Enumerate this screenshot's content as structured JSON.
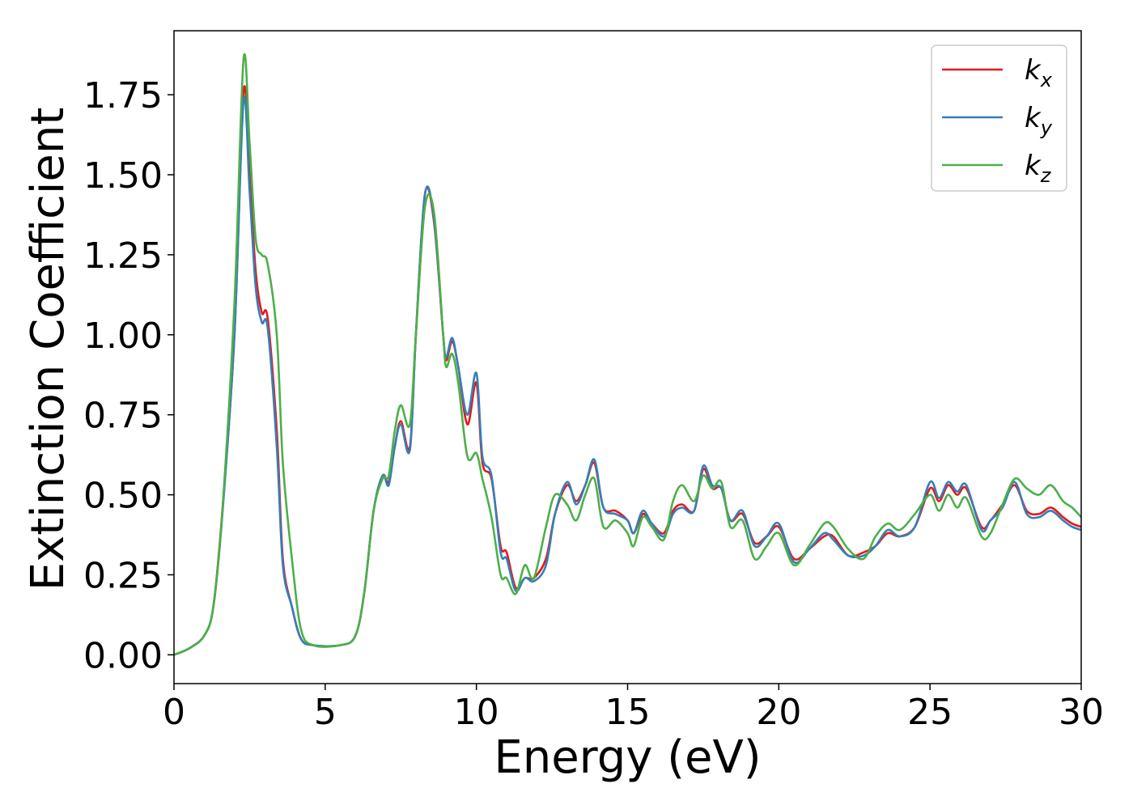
{
  "chart_data": {
    "type": "line",
    "title": "",
    "xlabel": "Energy (eV)",
    "ylabel": "Extinction Coefficient",
    "xlim": [
      0,
      30
    ],
    "ylim": [
      -0.09,
      1.95
    ],
    "xticks": [
      "0",
      "5",
      "10",
      "15",
      "20",
      "25",
      "30"
    ],
    "yticks": [
      "0.00",
      "0.25",
      "0.50",
      "0.75",
      "1.00",
      "1.25",
      "1.50",
      "1.75"
    ],
    "grid": false,
    "legend": {
      "position": "top-right"
    },
    "series": [
      {
        "name": "k_x",
        "label_main": "k",
        "label_sub": "x",
        "color": "#e41a1c",
        "points": [
          [
            0,
            0
          ],
          [
            0.5,
            0.02
          ],
          [
            1,
            0.06
          ],
          [
            1.3,
            0.15
          ],
          [
            1.6,
            0.45
          ],
          [
            2.0,
            1.0
          ],
          [
            2.3,
            1.76
          ],
          [
            2.5,
            1.5
          ],
          [
            2.7,
            1.2
          ],
          [
            2.9,
            1.07
          ],
          [
            3.1,
            1.05
          ],
          [
            3.4,
            0.7
          ],
          [
            3.6,
            0.3
          ],
          [
            3.9,
            0.15
          ],
          [
            4.2,
            0.05
          ],
          [
            4.6,
            0.03
          ],
          [
            5.5,
            0.03
          ],
          [
            6.0,
            0.06
          ],
          [
            6.3,
            0.2
          ],
          [
            6.6,
            0.45
          ],
          [
            6.9,
            0.56
          ],
          [
            7.1,
            0.54
          ],
          [
            7.3,
            0.65
          ],
          [
            7.5,
            0.73
          ],
          [
            7.8,
            0.65
          ],
          [
            8.0,
            1.0
          ],
          [
            8.3,
            1.44
          ],
          [
            8.6,
            1.35
          ],
          [
            8.9,
            1.0
          ],
          [
            9.0,
            0.92
          ],
          [
            9.2,
            0.98
          ],
          [
            9.4,
            0.9
          ],
          [
            9.7,
            0.72
          ],
          [
            10.0,
            0.85
          ],
          [
            10.2,
            0.6
          ],
          [
            10.5,
            0.55
          ],
          [
            10.8,
            0.34
          ],
          [
            11.0,
            0.32
          ],
          [
            11.3,
            0.21
          ],
          [
            11.6,
            0.24
          ],
          [
            11.9,
            0.24
          ],
          [
            12.3,
            0.3
          ],
          [
            12.6,
            0.44
          ],
          [
            13.0,
            0.53
          ],
          [
            13.3,
            0.48
          ],
          [
            13.6,
            0.53
          ],
          [
            13.9,
            0.6
          ],
          [
            14.2,
            0.46
          ],
          [
            14.6,
            0.45
          ],
          [
            15.0,
            0.42
          ],
          [
            15.2,
            0.38
          ],
          [
            15.5,
            0.44
          ],
          [
            15.8,
            0.41
          ],
          [
            16.2,
            0.38
          ],
          [
            16.5,
            0.45
          ],
          [
            16.8,
            0.47
          ],
          [
            17.2,
            0.45
          ],
          [
            17.5,
            0.58
          ],
          [
            17.8,
            0.52
          ],
          [
            18.1,
            0.52
          ],
          [
            18.4,
            0.42
          ],
          [
            18.8,
            0.44
          ],
          [
            19.2,
            0.35
          ],
          [
            19.6,
            0.37
          ],
          [
            20.0,
            0.4
          ],
          [
            20.5,
            0.3
          ],
          [
            21.0,
            0.33
          ],
          [
            21.5,
            0.37
          ],
          [
            21.8,
            0.37
          ],
          [
            22.3,
            0.31
          ],
          [
            22.8,
            0.32
          ],
          [
            23.2,
            0.34
          ],
          [
            23.6,
            0.38
          ],
          [
            24.0,
            0.37
          ],
          [
            24.5,
            0.4
          ],
          [
            25.0,
            0.52
          ],
          [
            25.3,
            0.48
          ],
          [
            25.6,
            0.53
          ],
          [
            25.9,
            0.5
          ],
          [
            26.2,
            0.52
          ],
          [
            26.7,
            0.4
          ],
          [
            27.0,
            0.42
          ],
          [
            27.4,
            0.47
          ],
          [
            27.8,
            0.53
          ],
          [
            28.2,
            0.45
          ],
          [
            28.6,
            0.44
          ],
          [
            29.0,
            0.46
          ],
          [
            29.4,
            0.43
          ],
          [
            29.7,
            0.41
          ],
          [
            30.0,
            0.4
          ]
        ]
      },
      {
        "name": "k_y",
        "label_main": "k",
        "label_sub": "y",
        "color": "#377eb8",
        "points": [
          [
            0,
            0
          ],
          [
            0.5,
            0.02
          ],
          [
            1,
            0.06
          ],
          [
            1.3,
            0.15
          ],
          [
            1.6,
            0.44
          ],
          [
            2.0,
            1.0
          ],
          [
            2.3,
            1.73
          ],
          [
            2.5,
            1.45
          ],
          [
            2.7,
            1.15
          ],
          [
            2.9,
            1.04
          ],
          [
            3.1,
            1.02
          ],
          [
            3.4,
            0.65
          ],
          [
            3.6,
            0.28
          ],
          [
            3.9,
            0.15
          ],
          [
            4.2,
            0.05
          ],
          [
            4.6,
            0.03
          ],
          [
            5.5,
            0.03
          ],
          [
            6.0,
            0.06
          ],
          [
            6.3,
            0.2
          ],
          [
            6.6,
            0.45
          ],
          [
            6.9,
            0.56
          ],
          [
            7.1,
            0.53
          ],
          [
            7.3,
            0.65
          ],
          [
            7.5,
            0.72
          ],
          [
            7.8,
            0.64
          ],
          [
            8.0,
            1.0
          ],
          [
            8.3,
            1.44
          ],
          [
            8.6,
            1.36
          ],
          [
            8.9,
            1.0
          ],
          [
            9.0,
            0.93
          ],
          [
            9.2,
            0.99
          ],
          [
            9.4,
            0.9
          ],
          [
            9.7,
            0.75
          ],
          [
            10.0,
            0.88
          ],
          [
            10.2,
            0.62
          ],
          [
            10.5,
            0.56
          ],
          [
            10.8,
            0.32
          ],
          [
            11.0,
            0.3
          ],
          [
            11.3,
            0.2
          ],
          [
            11.6,
            0.24
          ],
          [
            11.9,
            0.23
          ],
          [
            12.3,
            0.28
          ],
          [
            12.6,
            0.44
          ],
          [
            13.0,
            0.54
          ],
          [
            13.3,
            0.47
          ],
          [
            13.6,
            0.53
          ],
          [
            13.9,
            0.61
          ],
          [
            14.2,
            0.46
          ],
          [
            14.6,
            0.44
          ],
          [
            15.0,
            0.42
          ],
          [
            15.2,
            0.38
          ],
          [
            15.5,
            0.45
          ],
          [
            15.8,
            0.41
          ],
          [
            16.2,
            0.37
          ],
          [
            16.5,
            0.44
          ],
          [
            16.8,
            0.46
          ],
          [
            17.2,
            0.45
          ],
          [
            17.5,
            0.59
          ],
          [
            17.8,
            0.53
          ],
          [
            18.1,
            0.52
          ],
          [
            18.4,
            0.42
          ],
          [
            18.8,
            0.45
          ],
          [
            19.2,
            0.34
          ],
          [
            19.6,
            0.37
          ],
          [
            20.0,
            0.41
          ],
          [
            20.5,
            0.29
          ],
          [
            21.0,
            0.33
          ],
          [
            21.5,
            0.38
          ],
          [
            21.8,
            0.36
          ],
          [
            22.3,
            0.31
          ],
          [
            22.8,
            0.31
          ],
          [
            23.2,
            0.34
          ],
          [
            23.6,
            0.39
          ],
          [
            24.0,
            0.37
          ],
          [
            24.5,
            0.4
          ],
          [
            25.0,
            0.54
          ],
          [
            25.3,
            0.49
          ],
          [
            25.6,
            0.54
          ],
          [
            25.9,
            0.51
          ],
          [
            26.2,
            0.53
          ],
          [
            26.7,
            0.39
          ],
          [
            27.0,
            0.42
          ],
          [
            27.4,
            0.46
          ],
          [
            27.8,
            0.54
          ],
          [
            28.2,
            0.44
          ],
          [
            28.6,
            0.43
          ],
          [
            29.0,
            0.45
          ],
          [
            29.4,
            0.42
          ],
          [
            29.7,
            0.4
          ],
          [
            30.0,
            0.39
          ]
        ]
      },
      {
        "name": "k_z",
        "label_main": "k",
        "label_sub": "z",
        "color": "#4daf4a",
        "points": [
          [
            0,
            0
          ],
          [
            0.5,
            0.02
          ],
          [
            1,
            0.06
          ],
          [
            1.3,
            0.15
          ],
          [
            1.6,
            0.45
          ],
          [
            2.0,
            1.1
          ],
          [
            2.3,
            1.86
          ],
          [
            2.5,
            1.6
          ],
          [
            2.7,
            1.3
          ],
          [
            2.9,
            1.25
          ],
          [
            3.1,
            1.22
          ],
          [
            3.4,
            1.0
          ],
          [
            3.6,
            0.6
          ],
          [
            3.9,
            0.3
          ],
          [
            4.2,
            0.08
          ],
          [
            4.6,
            0.03
          ],
          [
            5.5,
            0.03
          ],
          [
            6.0,
            0.06
          ],
          [
            6.3,
            0.2
          ],
          [
            6.6,
            0.45
          ],
          [
            6.9,
            0.55
          ],
          [
            7.1,
            0.56
          ],
          [
            7.3,
            0.7
          ],
          [
            7.5,
            0.78
          ],
          [
            7.8,
            0.72
          ],
          [
            8.0,
            1.0
          ],
          [
            8.3,
            1.4
          ],
          [
            8.6,
            1.38
          ],
          [
            8.9,
            1.0
          ],
          [
            9.0,
            0.9
          ],
          [
            9.2,
            0.94
          ],
          [
            9.4,
            0.85
          ],
          [
            9.7,
            0.62
          ],
          [
            10.0,
            0.63
          ],
          [
            10.2,
            0.55
          ],
          [
            10.5,
            0.43
          ],
          [
            10.8,
            0.25
          ],
          [
            11.0,
            0.24
          ],
          [
            11.3,
            0.19
          ],
          [
            11.6,
            0.28
          ],
          [
            11.9,
            0.24
          ],
          [
            12.3,
            0.4
          ],
          [
            12.6,
            0.5
          ],
          [
            13.0,
            0.47
          ],
          [
            13.3,
            0.42
          ],
          [
            13.6,
            0.5
          ],
          [
            13.9,
            0.55
          ],
          [
            14.2,
            0.4
          ],
          [
            14.6,
            0.42
          ],
          [
            15.0,
            0.38
          ],
          [
            15.2,
            0.34
          ],
          [
            15.5,
            0.43
          ],
          [
            15.8,
            0.4
          ],
          [
            16.2,
            0.36
          ],
          [
            16.5,
            0.48
          ],
          [
            16.8,
            0.53
          ],
          [
            17.2,
            0.48
          ],
          [
            17.5,
            0.56
          ],
          [
            17.8,
            0.52
          ],
          [
            18.1,
            0.54
          ],
          [
            18.4,
            0.4
          ],
          [
            18.8,
            0.42
          ],
          [
            19.2,
            0.3
          ],
          [
            19.6,
            0.34
          ],
          [
            20.0,
            0.38
          ],
          [
            20.5,
            0.28
          ],
          [
            21.0,
            0.34
          ],
          [
            21.5,
            0.41
          ],
          [
            21.8,
            0.4
          ],
          [
            22.3,
            0.33
          ],
          [
            22.8,
            0.3
          ],
          [
            23.2,
            0.37
          ],
          [
            23.6,
            0.41
          ],
          [
            24.0,
            0.39
          ],
          [
            24.5,
            0.44
          ],
          [
            25.0,
            0.5
          ],
          [
            25.3,
            0.45
          ],
          [
            25.6,
            0.5
          ],
          [
            25.9,
            0.46
          ],
          [
            26.2,
            0.49
          ],
          [
            26.7,
            0.37
          ],
          [
            27.0,
            0.38
          ],
          [
            27.4,
            0.47
          ],
          [
            27.8,
            0.55
          ],
          [
            28.2,
            0.52
          ],
          [
            28.6,
            0.5
          ],
          [
            29.0,
            0.53
          ],
          [
            29.4,
            0.48
          ],
          [
            29.7,
            0.46
          ],
          [
            30.0,
            0.43
          ]
        ]
      }
    ]
  }
}
